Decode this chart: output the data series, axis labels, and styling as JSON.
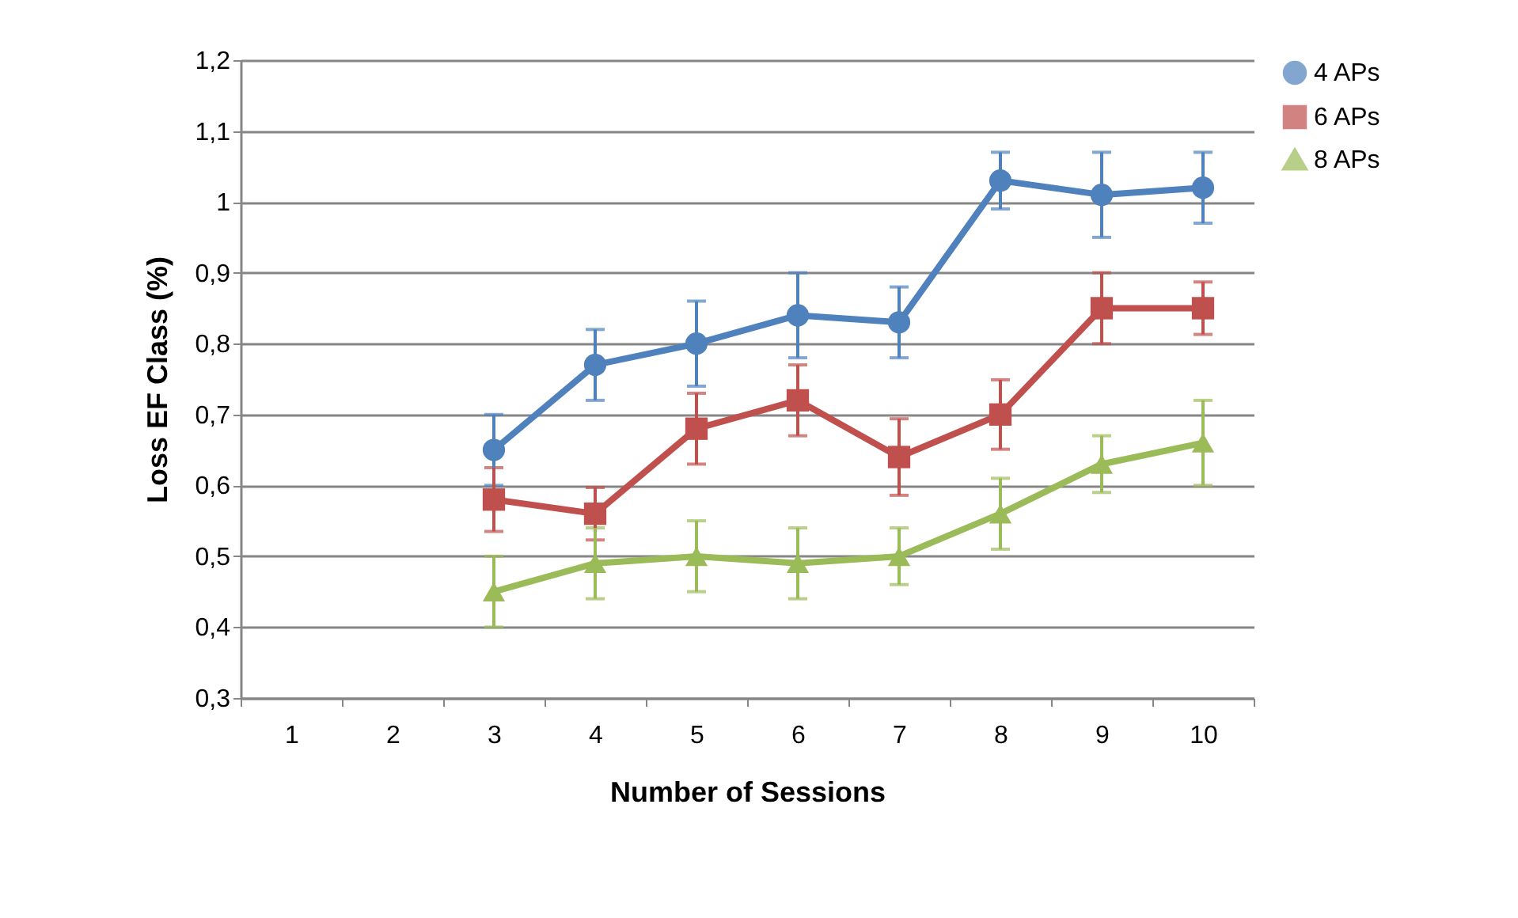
{
  "chart_data": {
    "type": "line",
    "xlabel": "Number of Sessions",
    "ylabel": "Loss EF Class (%)",
    "categories": [
      "1",
      "2",
      "3",
      "4",
      "5",
      "6",
      "7",
      "8",
      "9",
      "10"
    ],
    "series": [
      {
        "name": "4 APs",
        "color": "#4f81bd",
        "marker": "circle",
        "values": [
          null,
          null,
          0.65,
          0.77,
          0.8,
          0.84,
          0.83,
          1.03,
          1.01,
          1.02
        ],
        "errors": [
          null,
          null,
          0.05,
          0.05,
          0.06,
          0.06,
          0.05,
          0.04,
          0.06,
          0.05
        ]
      },
      {
        "name": "6 APs",
        "color": "#c0504d",
        "marker": "square",
        "values": [
          null,
          null,
          0.58,
          0.56,
          0.68,
          0.72,
          0.64,
          0.7,
          0.85,
          0.85
        ],
        "errors": [
          null,
          null,
          0.045,
          0.037,
          0.05,
          0.05,
          0.054,
          0.049,
          0.05,
          0.037
        ]
      },
      {
        "name": "8 APs",
        "color": "#9bbb59",
        "marker": "triangle",
        "values": [
          null,
          null,
          0.45,
          0.49,
          0.5,
          0.49,
          0.5,
          0.56,
          0.63,
          0.66
        ],
        "errors": [
          null,
          null,
          0.05,
          0.05,
          0.05,
          0.05,
          0.04,
          0.05,
          0.04,
          0.06
        ]
      }
    ],
    "ylim": [
      0.3,
      1.2
    ],
    "yticks": [
      {
        "value": 0.3,
        "label": "0,3"
      },
      {
        "value": 0.4,
        "label": "0,4"
      },
      {
        "value": 0.5,
        "label": "0,5"
      },
      {
        "value": 0.6,
        "label": "0,6"
      },
      {
        "value": 0.7,
        "label": "0,7"
      },
      {
        "value": 0.8,
        "label": "0,8"
      },
      {
        "value": 0.9,
        "label": "0,9"
      },
      1,
      {
        "value": 1.1,
        "label": "1,1"
      },
      {
        "value": 1.2,
        "label": "1,2"
      }
    ],
    "grid": "y",
    "legend": "right",
    "line_style": "solid"
  }
}
